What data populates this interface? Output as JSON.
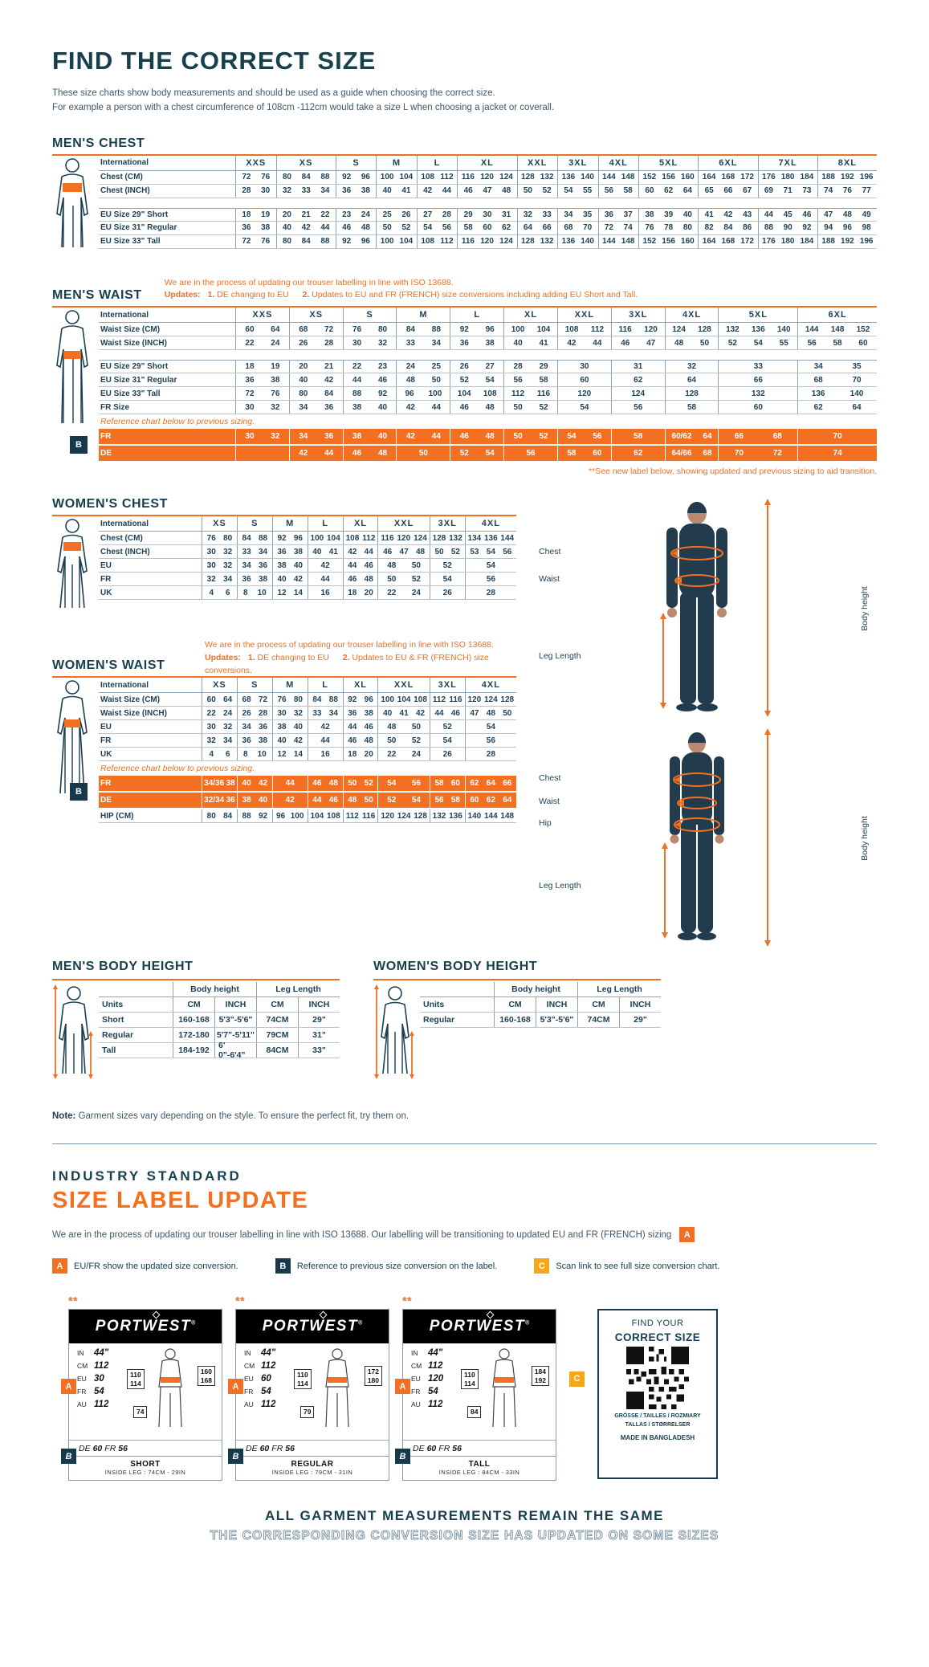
{
  "colors": {
    "navy": "#16394c",
    "orange": "#f36f21",
    "amber": "#f9a51a"
  },
  "header": {
    "title": "FIND THE CORRECT SIZE",
    "intro1": "These size charts show body measurements and should be used as a guide when choosing the correct size.",
    "intro2": "For example a person with a chest circumference of 108cm -112cm would take a size L when choosing a jacket or coverall."
  },
  "mens_chest": {
    "heading": "MEN'S CHEST",
    "table": {
      "corner": "International",
      "label_w": "170px",
      "columns": [
        {
          "label": "XXS",
          "span": 2
        },
        {
          "label": "XS",
          "span": 3
        },
        {
          "label": "S",
          "span": 2
        },
        {
          "label": "M",
          "span": 2
        },
        {
          "label": "L",
          "span": 2
        },
        {
          "label": "XL",
          "span": 3
        },
        {
          "label": "XXL",
          "span": 2
        },
        {
          "label": "3XL",
          "span": 2
        },
        {
          "label": "4XL",
          "span": 2
        },
        {
          "label": "5XL",
          "span": 3
        },
        {
          "label": "6XL",
          "span": 3
        },
        {
          "label": "7XL",
          "span": 3
        },
        {
          "label": "8XL",
          "span": 3
        }
      ],
      "rows": [
        {
          "label": "Chest (CM)",
          "cells": [
            "72 76",
            "80 84 88",
            "92 96",
            "100 104",
            "108 112",
            "116 120 124",
            "128 132",
            "136 140",
            "144 148",
            "152 156 160",
            "164 168 172",
            "176 180 184",
            "188 192 196"
          ]
        },
        {
          "label": "Chest (INCH)",
          "cells": [
            "28 30",
            "32 33 34",
            "36 38",
            "40 41",
            "42 44",
            "46 47 48",
            "50 52",
            "54 55",
            "56 58",
            "60 62 64",
            "65 66 67",
            "69 71 73",
            "74 76 77"
          ]
        },
        {
          "type": "gap"
        },
        {
          "label": "EU Size 29\" Short",
          "cls": "after-gap",
          "cells": [
            "18 19",
            "20 21 22",
            "23 24",
            "25 26",
            "27 28",
            "29 30 31",
            "32 33",
            "34 35",
            "36 37",
            "38 39 40",
            "41 42 43",
            "44 45 46",
            "47 48 49"
          ]
        },
        {
          "label": "EU Size 31\" Regular",
          "cells": [
            "36 38",
            "40 42 44",
            "46 48",
            "50 52",
            "54 56",
            "58 60 62",
            "64 66",
            "68 70",
            "72 74",
            "76 78 80",
            "82 84 86",
            "88 90 92",
            "94 96 98"
          ]
        },
        {
          "label": "EU Size 33\" Tall",
          "cells": [
            "72 76",
            "80 84 88",
            "92 96",
            "100 104",
            "108 112",
            "116 120 124",
            "128 132",
            "136 140",
            "144 148",
            "152 156 160",
            "164 168 172",
            "176 180 184",
            "188 192 196"
          ]
        }
      ]
    }
  },
  "mens_waist": {
    "heading": "MEN'S WAIST",
    "note1": "We are in the process of updating our trouser labelling in line with ISO 13688.",
    "updates_label": "Updates:",
    "update1_num": "1.",
    "update1": "DE changing to EU",
    "update2_num": "2.",
    "update2": "Updates to EU and FR (FRENCH) size conversions including adding EU Short and Tall.",
    "footnote": "**See new label below, showing updated and previous sizing to aid transition.",
    "table": {
      "corner": "International",
      "label_w": "170px",
      "columns": [
        {
          "label": "XXS",
          "span": 2
        },
        {
          "label": "XS",
          "span": 2
        },
        {
          "label": "S",
          "span": 2
        },
        {
          "label": "M",
          "span": 2
        },
        {
          "label": "L",
          "span": 2
        },
        {
          "label": "XL",
          "span": 2
        },
        {
          "label": "XXL",
          "span": 2
        },
        {
          "label": "3XL",
          "span": 2
        },
        {
          "label": "4XL",
          "span": 2
        },
        {
          "label": "5XL",
          "span": 3
        },
        {
          "label": "6XL",
          "span": 3
        }
      ],
      "rows": [
        {
          "label": "Waist Size (CM)",
          "cells": [
            "60 64",
            "68 72",
            "76 80",
            "84 88",
            "92 96",
            "100 104",
            "108 112",
            "116 120",
            "124 128",
            "132 136 140",
            "144 148 152"
          ]
        },
        {
          "label": "Waist Size (INCH)",
          "cells": [
            "22 24",
            "26 28",
            "30 32",
            "33 34",
            "36 38",
            "40 41",
            "42 44",
            "46 47",
            "48 50",
            "52 54 55",
            "56 58 60"
          ]
        },
        {
          "type": "gap"
        },
        {
          "label": "EU Size 29\" Short",
          "cls": "after-gap",
          "cells": [
            "18 19",
            "20 21",
            "22 23",
            "24 25",
            "26 27",
            "28 29",
            "30",
            "31",
            "32",
            "33",
            "34 35"
          ]
        },
        {
          "label": "EU Size 31\" Regular",
          "cells": [
            "36 38",
            "40 42",
            "44 46",
            "48 50",
            "52 54",
            "56 58",
            "60",
            "62",
            "64",
            "66",
            "68 70"
          ]
        },
        {
          "label": "EU Size 33\" Tall",
          "cells": [
            "72 76",
            "80 84",
            "88 92",
            "96 100",
            "104 108",
            "112 116",
            "120",
            "124",
            "128",
            "132",
            "136 140"
          ]
        },
        {
          "label": "FR Size",
          "cells": [
            "30 32",
            "34 36",
            "38 40",
            "42 44",
            "46 48",
            "50 52",
            "54",
            "56",
            "58",
            "60",
            "62 64"
          ]
        },
        {
          "type": "note",
          "text": "Reference chart below to previous sizing."
        },
        {
          "type": "orange",
          "label": "FR",
          "badge": "B",
          "cells": [
            "30 32",
            "34 36",
            "38 40",
            "42 44",
            "46 48",
            "50 52",
            "54 56",
            "58",
            "60/62 64",
            "66 68",
            "70"
          ]
        },
        {
          "type": "orange",
          "label": "DE",
          "cells": [
            "",
            "42 44",
            "46 48",
            "50",
            "52 54",
            "56",
            "58 60",
            "62",
            "64/66 68",
            "70 72",
            "74"
          ]
        }
      ]
    }
  },
  "womens_chest": {
    "heading": "WOMEN'S CHEST",
    "table": {
      "corner": "International",
      "label_w": "128px",
      "columns": [
        {
          "label": "XS",
          "span": 2
        },
        {
          "label": "S",
          "span": 2
        },
        {
          "label": "M",
          "span": 2
        },
        {
          "label": "L",
          "span": 2
        },
        {
          "label": "XL",
          "span": 2
        },
        {
          "label": "XXL",
          "span": 3
        },
        {
          "label": "3XL",
          "span": 2
        },
        {
          "label": "4XL",
          "span": 3
        }
      ],
      "rows": [
        {
          "label": "Chest (CM)",
          "cells": [
            "76 80",
            "84 88",
            "92 96",
            "100 104",
            "108 112",
            "116 120 124",
            "128 132",
            "134 136 144"
          ]
        },
        {
          "label": "Chest (INCH)",
          "cells": [
            "30 32",
            "33 34",
            "36 38",
            "40 41",
            "42 44",
            "46 47 48",
            "50 52",
            "53 54 56"
          ]
        },
        {
          "label": "EU",
          "cells": [
            "30 32",
            "34 36",
            "38 40",
            "42",
            "44 46",
            "48 50",
            "52",
            "54"
          ]
        },
        {
          "label": "FR",
          "cells": [
            "32 34",
            "36 38",
            "40 42",
            "44",
            "46 48",
            "50 52",
            "54",
            "56"
          ]
        },
        {
          "label": "UK",
          "cells": [
            "4 6",
            "8 10",
            "12 14",
            "16",
            "18 20",
            "22 24",
            "26",
            "28"
          ]
        }
      ]
    }
  },
  "womens_waist": {
    "heading": "WOMEN'S WAIST",
    "note1": "We are in the process of updating our trouser labelling in line with ISO 13688.",
    "updates_label": "Updates:",
    "update1_num": "1.",
    "update1": "DE changing to EU",
    "update2_num": "2.",
    "update2": "Updates to EU & FR (FRENCH) size conversions.",
    "table": {
      "corner": "International",
      "label_w": "128px",
      "columns": [
        {
          "label": "XS",
          "span": 2
        },
        {
          "label": "S",
          "span": 2
        },
        {
          "label": "M",
          "span": 2
        },
        {
          "label": "L",
          "span": 2
        },
        {
          "label": "XL",
          "span": 2
        },
        {
          "label": "XXL",
          "span": 3
        },
        {
          "label": "3XL",
          "span": 2
        },
        {
          "label": "4XL",
          "span": 3
        }
      ],
      "rows": [
        {
          "label": "Waist Size (CM)",
          "cells": [
            "60 64",
            "68 72",
            "76 80",
            "84 88",
            "92 96",
            "100 104 108",
            "112 116",
            "120 124 128"
          ]
        },
        {
          "label": "Waist Size (INCH)",
          "cells": [
            "22 24",
            "26 28",
            "30 32",
            "33 34",
            "36 38",
            "40 41 42",
            "44 46",
            "47 48 50"
          ]
        },
        {
          "label": "EU",
          "cells": [
            "30 32",
            "34 36",
            "38 40",
            "42",
            "44 46",
            "48 50",
            "52",
            "54"
          ]
        },
        {
          "label": "FR",
          "cells": [
            "32 34",
            "36 38",
            "40 42",
            "44",
            "46 48",
            "50 52",
            "54",
            "56"
          ]
        },
        {
          "label": "UK",
          "cells": [
            "4 6",
            "8 10",
            "12 14",
            "16",
            "18 20",
            "22 24",
            "26",
            "28"
          ]
        },
        {
          "type": "note",
          "text": "Reference chart below to previous sizing."
        },
        {
          "type": "orange",
          "label": "FR",
          "badge": "B",
          "cells": [
            "34/36 38",
            "40 42",
            "44",
            "46 48",
            "50 52",
            "54 56",
            "58 60",
            "62 64 66"
          ]
        },
        {
          "type": "orange",
          "label": "DE",
          "cells": [
            "32/34 36",
            "38 40",
            "42",
            "44 46",
            "48 50",
            "52 54",
            "56 58",
            "60 62 64"
          ]
        },
        {
          "label": "HIP (CM)",
          "cells": [
            "80 84",
            "88 92",
            "96 100",
            "104 108",
            "112 116",
            "120 124 128",
            "132 136",
            "140 144 148"
          ]
        }
      ]
    }
  },
  "figures": {
    "men": {
      "labels": {
        "chest": "Chest",
        "waist": "Waist",
        "leg": "Leg Length",
        "height": "Body height"
      }
    },
    "women": {
      "labels": {
        "chest": "Chest",
        "waist": "Waist",
        "hip": "Hip",
        "leg": "Leg Length",
        "height": "Body height"
      }
    }
  },
  "mens_body_height": {
    "heading": "MEN'S BODY HEIGHT",
    "table": {
      "group_headers": [
        "Body height",
        "Leg Length"
      ],
      "col_headers": [
        "Units",
        "CM",
        "INCH",
        "CM",
        "INCH"
      ],
      "rows": [
        [
          "Short",
          "160-168",
          "5'3\"-5'6\"",
          "74CM",
          "29\""
        ],
        [
          "Regular",
          "172-180",
          "5'7\"-5'11\"",
          "79CM",
          "31\""
        ],
        [
          "Tall",
          "184-192",
          "6' 0\"-6'4\"",
          "84CM",
          "33\""
        ]
      ]
    }
  },
  "womens_body_height": {
    "heading": "WOMEN'S BODY HEIGHT",
    "table": {
      "group_headers": [
        "Body height",
        "Leg Length"
      ],
      "col_headers": [
        "Units",
        "CM",
        "INCH",
        "CM",
        "INCH"
      ],
      "rows": [
        [
          "Regular",
          "160-168",
          "5'3\"-5'6\"",
          "74CM",
          "29\""
        ]
      ]
    }
  },
  "note": {
    "label": "Note:",
    "text": "Garment sizes vary depending on the style. To ensure the perfect fit, try them on."
  },
  "label_update": {
    "kicker": "INDUSTRY STANDARD",
    "title": "SIZE LABEL UPDATE",
    "paragraph": "We are in the process of updating our trouser labelling in line with ISO 13688. Our labelling will be transitioning to updated EU and FR (FRENCH) sizing",
    "paragraph_badge": "A",
    "legend": [
      {
        "letter": "A",
        "color": "#f36f21",
        "text": "EU/FR show the updated size conversion."
      },
      {
        "letter": "B",
        "color": "#16394c",
        "text": "Reference to previous size conversion on the label."
      },
      {
        "letter": "C",
        "color": "#f9a51a",
        "text": "Scan link to see full size conversion chart."
      }
    ],
    "cards": [
      {
        "stars": "**",
        "brand": "PORTWEST",
        "brand_reg": "®",
        "rows": [
          [
            "IN",
            "44\""
          ],
          [
            "CM",
            "112"
          ],
          [
            "EU",
            "30"
          ],
          [
            "FR",
            "54"
          ],
          [
            "AU",
            "112"
          ]
        ],
        "a_badge": "A",
        "b_badge": "B",
        "de_row": [
          "DE",
          "60",
          "FR",
          "56"
        ],
        "waist_box": "110 114",
        "height_box": "160 168",
        "leg_box": "74",
        "footer_title": "SHORT",
        "footer_sub": "INSIDE LEG : 74CM - 29IN"
      },
      {
        "stars": "**",
        "brand": "PORTWEST",
        "brand_reg": "®",
        "rows": [
          [
            "IN",
            "44\""
          ],
          [
            "CM",
            "112"
          ],
          [
            "EU",
            "60"
          ],
          [
            "FR",
            "54"
          ],
          [
            "AU",
            "112"
          ]
        ],
        "a_badge": "A",
        "b_badge": "B",
        "de_row": [
          "DE",
          "60",
          "FR",
          "56"
        ],
        "waist_box": "110 114",
        "height_box": "172 180",
        "leg_box": "79",
        "footer_title": "REGULAR",
        "footer_sub": "INSIDE LEG : 79CM - 31IN"
      },
      {
        "stars": "**",
        "brand": "PORTWEST",
        "brand_reg": "®",
        "rows": [
          [
            "IN",
            "44\""
          ],
          [
            "CM",
            "112"
          ],
          [
            "EU",
            "120"
          ],
          [
            "FR",
            "54"
          ],
          [
            "AU",
            "112"
          ]
        ],
        "a_badge": "A",
        "b_badge": "B",
        "de_row": [
          "DE",
          "60",
          "FR",
          "56"
        ],
        "waist_box": "110 114",
        "height_box": "184 192",
        "leg_box": "84",
        "footer_title": "TALL",
        "footer_sub": "INSIDE LEG : 84CM - 33IN"
      }
    ],
    "c_badge": "C",
    "qr_card": {
      "line1": "FIND YOUR",
      "line2": "CORRECT SIZE",
      "langs1": "GRÖSSE / TAILLES / ROZMIARY",
      "langs2": "TALLAS / STØRRELSER",
      "made": "MADE IN BANGLADESH"
    },
    "footer_line1": "ALL GARMENT MEASUREMENTS REMAIN THE SAME",
    "footer_line2": "THE CORRESPONDING CONVERSION SIZE HAS UPDATED ON SOME SIZES"
  }
}
